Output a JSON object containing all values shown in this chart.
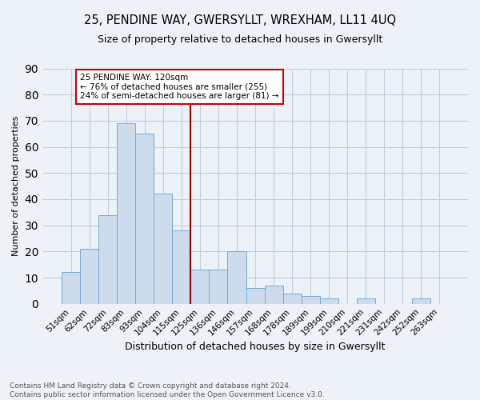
{
  "title": "25, PENDINE WAY, GWERSYLLT, WREXHAM, LL11 4UQ",
  "subtitle": "Size of property relative to detached houses in Gwersyllt",
  "xlabel": "Distribution of detached houses by size in Gwersyllt",
  "ylabel": "Number of detached properties",
  "footer_line1": "Contains HM Land Registry data © Crown copyright and database right 2024.",
  "footer_line2": "Contains public sector information licensed under the Open Government Licence v3.0.",
  "bar_labels": [
    "51sqm",
    "62sqm",
    "72sqm",
    "83sqm",
    "93sqm",
    "104sqm",
    "115sqm",
    "125sqm",
    "136sqm",
    "146sqm",
    "157sqm",
    "168sqm",
    "178sqm",
    "189sqm",
    "199sqm",
    "210sqm",
    "221sqm",
    "231sqm",
    "242sqm",
    "252sqm",
    "263sqm"
  ],
  "bar_values": [
    12,
    21,
    34,
    69,
    65,
    42,
    28,
    13,
    13,
    20,
    6,
    7,
    4,
    3,
    2,
    0,
    2,
    0,
    0,
    2,
    0
  ],
  "bar_color": "#ccdcec",
  "bar_edgecolor": "#7aaacf",
  "grid_color": "#c0cfe0",
  "bg_color": "#edf2f8",
  "vline_color": "#990000",
  "annotation_text": "25 PENDINE WAY: 120sqm\n← 76% of detached houses are smaller (255)\n24% of semi-detached houses are larger (81) →",
  "annotation_box_color": "#ffffff",
  "annotation_box_edgecolor": "#cc0000",
  "ylim": [
    0,
    90
  ],
  "yticks": [
    0,
    10,
    20,
    30,
    40,
    50,
    60,
    70,
    80,
    90
  ],
  "title_fontsize": 10.5,
  "subtitle_fontsize": 9,
  "ylabel_fontsize": 8,
  "xlabel_fontsize": 9,
  "tick_fontsize": 7.5,
  "footer_fontsize": 6.5,
  "annotation_fontsize": 7.5
}
